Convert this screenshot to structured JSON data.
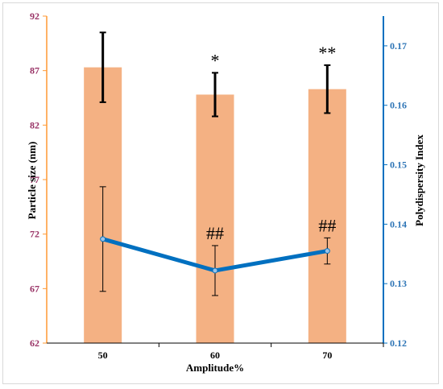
{
  "colors": {
    "bar": "#f4b183",
    "line": "#0070c0",
    "marker_fill": "#9dc3e6",
    "left_axis": "#ff9933",
    "left_ticks": "#993366",
    "right_axis": "#0070c0",
    "right_ticks": "#2e75b6"
  },
  "chart_data": {
    "type": "bar",
    "categories": [
      "50",
      "60",
      "70"
    ],
    "xlabel": "Amplitude%",
    "ylabel": "Particle size (nm)",
    "y2label": "Polydispersity Index",
    "ylim": [
      62,
      92
    ],
    "y2lim": [
      0.12,
      0.175
    ],
    "yticks": [
      "62",
      "67",
      "72",
      "77",
      "82",
      "87",
      "92"
    ],
    "y2ticks": [
      "0.12",
      "0.13",
      "0.14",
      "0.15",
      "0.16",
      "0.17"
    ],
    "grid": false,
    "series": [
      {
        "kind": "bar",
        "axis": "left",
        "values": [
          87.3,
          84.8,
          85.3
        ],
        "errors": [
          3.2,
          2.0,
          2.2
        ],
        "annotations": [
          "",
          "*",
          "**"
        ]
      },
      {
        "kind": "line",
        "axis": "right",
        "values": [
          0.1375,
          0.1322,
          0.1355
        ],
        "errors": [
          0.0088,
          0.0042,
          0.0022
        ],
        "annotations": [
          "",
          "##",
          "##"
        ]
      }
    ]
  }
}
